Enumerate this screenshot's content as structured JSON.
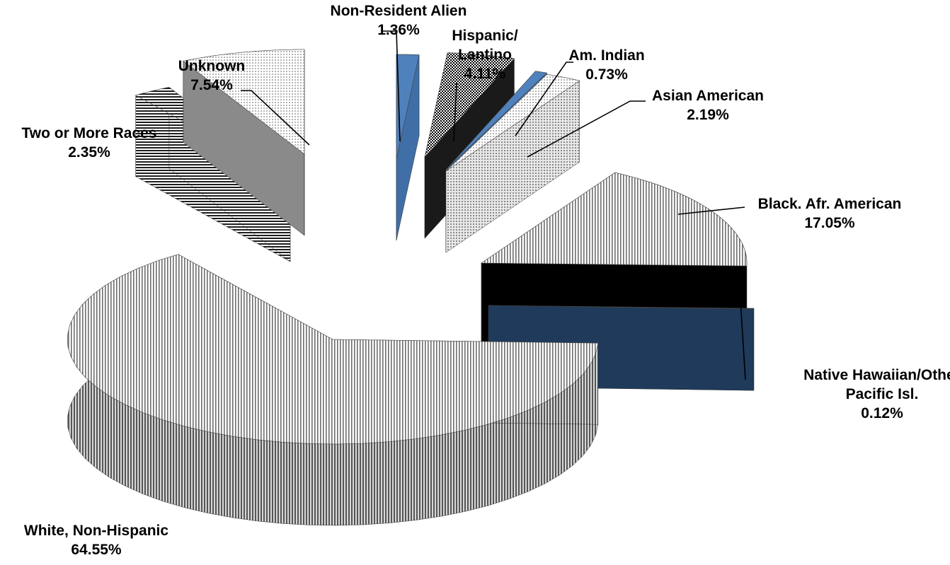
{
  "chart_data": {
    "type": "pie",
    "subtype": "exploded 3D pie",
    "title": "",
    "legend": "none",
    "slices": [
      {
        "label": "Non-Resident Alien",
        "value": 1.36,
        "value_label": "1.36%",
        "color": "#4f81bd",
        "pattern": "solid"
      },
      {
        "label": "Hispanic/ Lantino",
        "value": 4.11,
        "value_label": "4.11%",
        "color": "#000000",
        "pattern": "checker"
      },
      {
        "label": "Am. Indian",
        "value": 0.73,
        "value_label": "0.73%",
        "color": "#4f81bd",
        "pattern": "solid"
      },
      {
        "label": "Asian American",
        "value": 2.19,
        "value_label": "2.19%",
        "color": "#9a9a9a",
        "pattern": "dots"
      },
      {
        "label": "Black. Afr. American",
        "value": 17.05,
        "value_label": "17.05%",
        "color": "#5a5a5a",
        "pattern": "vertical-lines"
      },
      {
        "label": "Native Hawaiian/Other Pacific Isl.",
        "value": 0.12,
        "value_label": "0.12%",
        "color": "#1f3a5a",
        "pattern": "solid"
      },
      {
        "label": "White, Non-Hispanic",
        "value": 64.55,
        "value_label": "64.55%",
        "color": "#7a7a7a",
        "pattern": "vertical-lines"
      },
      {
        "label": "Two or More Races",
        "value": 2.35,
        "value_label": "2.35%",
        "color": "#2a2a2a",
        "pattern": "horizontal-lines"
      },
      {
        "label": "Unknown",
        "value": 7.54,
        "value_label": "7.54%",
        "color": "#cfcfcf",
        "pattern": "dots"
      }
    ]
  }
}
